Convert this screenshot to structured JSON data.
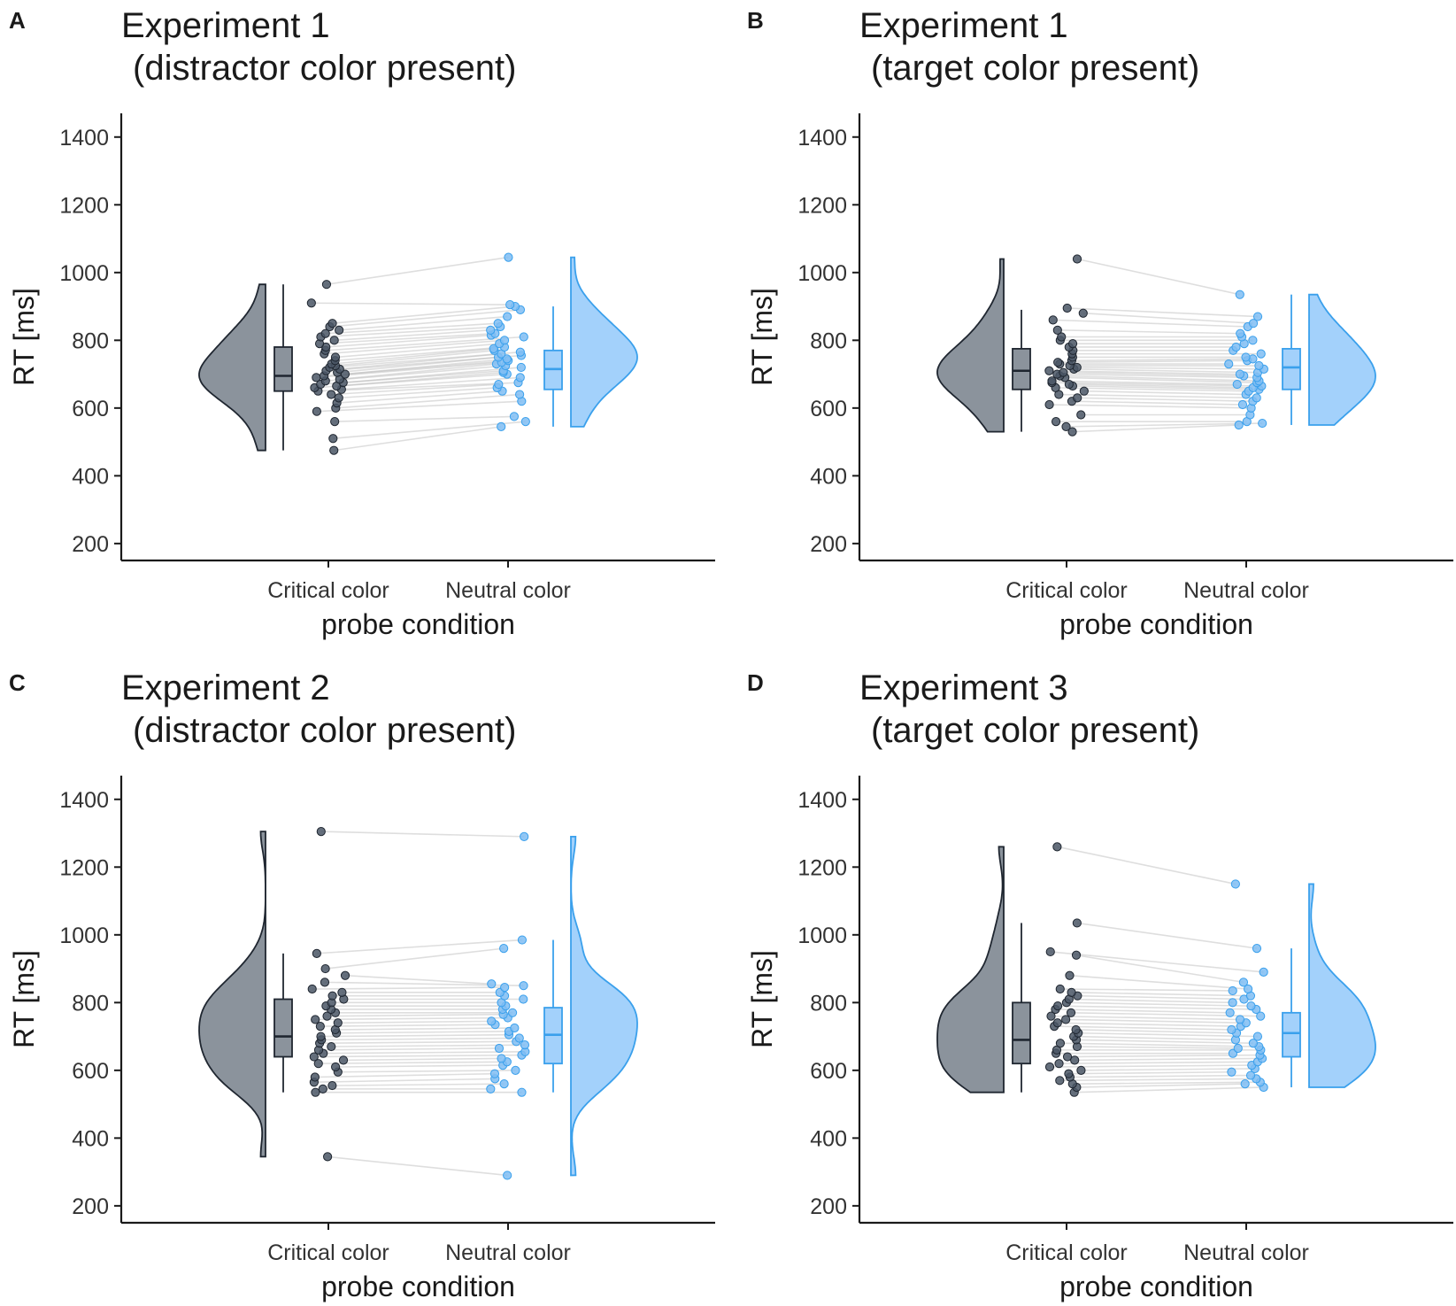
{
  "colors": {
    "critical": "#4a5665",
    "critical_fill": "#8b939c",
    "neutral": "#3aa0ec",
    "neutral_fill": "#a3d1fb"
  },
  "chart_data": [
    {
      "panel": "A",
      "type": "raincloud",
      "title_line1": "Experiment 1",
      "title_line2": "(distractor color present)",
      "xlabel": "probe condition",
      "ylabel": "RT [ms]",
      "categories": [
        "Critical color",
        "Neutral color"
      ],
      "ylim": [
        150,
        1470
      ],
      "yticks": [
        200,
        400,
        600,
        800,
        1000,
        1200,
        1400
      ],
      "box": [
        {
          "min": 475,
          "q1": 650,
          "median": 695,
          "q3": 780,
          "max": 965
        },
        {
          "min": 545,
          "q1": 655,
          "median": 715,
          "q3": 770,
          "max": 900
        }
      ],
      "paired": [
        [
          475,
          545
        ],
        [
          510,
          560
        ],
        [
          560,
          575
        ],
        [
          590,
          620
        ],
        [
          600,
          640
        ],
        [
          615,
          650
        ],
        [
          630,
          660
        ],
        [
          640,
          670
        ],
        [
          650,
          675
        ],
        [
          655,
          690
        ],
        [
          660,
          700
        ],
        [
          665,
          705
        ],
        [
          670,
          710
        ],
        [
          675,
          720
        ],
        [
          680,
          725
        ],
        [
          685,
          730
        ],
        [
          690,
          735
        ],
        [
          695,
          740
        ],
        [
          700,
          745
        ],
        [
          705,
          750
        ],
        [
          710,
          755
        ],
        [
          715,
          760
        ],
        [
          720,
          765
        ],
        [
          725,
          770
        ],
        [
          730,
          775
        ],
        [
          740,
          780
        ],
        [
          750,
          790
        ],
        [
          760,
          800
        ],
        [
          770,
          810
        ],
        [
          780,
          815
        ],
        [
          790,
          820
        ],
        [
          800,
          830
        ],
        [
          810,
          840
        ],
        [
          820,
          850
        ],
        [
          830,
          870
        ],
        [
          840,
          890
        ],
        [
          850,
          900
        ],
        [
          910,
          905
        ],
        [
          965,
          1045
        ]
      ]
    },
    {
      "panel": "B",
      "type": "raincloud",
      "title_line1": "Experiment 1",
      "title_line2": "(target color present)",
      "xlabel": "probe condition",
      "ylabel": "RT [ms]",
      "categories": [
        "Critical color",
        "Neutral color"
      ],
      "ylim": [
        150,
        1470
      ],
      "yticks": [
        200,
        400,
        600,
        800,
        1000,
        1200,
        1400
      ],
      "box": [
        {
          "min": 530,
          "q1": 655,
          "median": 710,
          "q3": 775,
          "max": 890
        },
        {
          "min": 550,
          "q1": 655,
          "median": 720,
          "q3": 775,
          "max": 935
        }
      ],
      "paired": [
        [
          530,
          550
        ],
        [
          545,
          555
        ],
        [
          560,
          560
        ],
        [
          580,
          580
        ],
        [
          610,
          600
        ],
        [
          620,
          610
        ],
        [
          630,
          620
        ],
        [
          640,
          630
        ],
        [
          650,
          640
        ],
        [
          660,
          650
        ],
        [
          665,
          655
        ],
        [
          670,
          660
        ],
        [
          675,
          665
        ],
        [
          680,
          670
        ],
        [
          690,
          675
        ],
        [
          695,
          680
        ],
        [
          700,
          690
        ],
        [
          705,
          695
        ],
        [
          710,
          700
        ],
        [
          715,
          705
        ],
        [
          720,
          715
        ],
        [
          725,
          725
        ],
        [
          730,
          730
        ],
        [
          735,
          740
        ],
        [
          740,
          745
        ],
        [
          750,
          750
        ],
        [
          760,
          760
        ],
        [
          770,
          770
        ],
        [
          780,
          780
        ],
        [
          790,
          790
        ],
        [
          800,
          800
        ],
        [
          810,
          810
        ],
        [
          830,
          820
        ],
        [
          860,
          840
        ],
        [
          880,
          850
        ],
        [
          895,
          870
        ],
        [
          1040,
          935
        ]
      ]
    },
    {
      "panel": "C",
      "type": "raincloud",
      "title_line1": "Experiment 2",
      "title_line2": "(distractor color present)",
      "xlabel": "probe condition",
      "ylabel": "RT [ms]",
      "categories": [
        "Critical color",
        "Neutral color"
      ],
      "ylim": [
        150,
        1470
      ],
      "yticks": [
        200,
        400,
        600,
        800,
        1000,
        1200,
        1400
      ],
      "box": [
        {
          "min": 535,
          "q1": 640,
          "median": 700,
          "q3": 810,
          "max": 945
        },
        {
          "min": 535,
          "q1": 620,
          "median": 705,
          "q3": 785,
          "max": 985
        }
      ],
      "paired": [
        [
          345,
          290
        ],
        [
          535,
          535
        ],
        [
          545,
          545
        ],
        [
          555,
          560
        ],
        [
          565,
          575
        ],
        [
          580,
          590
        ],
        [
          595,
          600
        ],
        [
          610,
          615
        ],
        [
          620,
          625
        ],
        [
          630,
          635
        ],
        [
          640,
          645
        ],
        [
          650,
          655
        ],
        [
          660,
          665
        ],
        [
          670,
          675
        ],
        [
          680,
          685
        ],
        [
          690,
          695
        ],
        [
          700,
          705
        ],
        [
          710,
          715
        ],
        [
          720,
          725
        ],
        [
          730,
          735
        ],
        [
          740,
          745
        ],
        [
          750,
          755
        ],
        [
          760,
          765
        ],
        [
          770,
          770
        ],
        [
          780,
          780
        ],
        [
          790,
          790
        ],
        [
          800,
          800
        ],
        [
          810,
          810
        ],
        [
          820,
          820
        ],
        [
          830,
          830
        ],
        [
          840,
          845
        ],
        [
          860,
          850
        ],
        [
          880,
          855
        ],
        [
          900,
          960
        ],
        [
          945,
          985
        ],
        [
          1305,
          1290
        ]
      ]
    },
    {
      "panel": "D",
      "type": "raincloud",
      "title_line1": "Experiment 3",
      "title_line2": "(target color present)",
      "xlabel": "probe condition",
      "ylabel": "RT [ms]",
      "categories": [
        "Critical color",
        "Neutral color"
      ],
      "ylim": [
        150,
        1470
      ],
      "yticks": [
        200,
        400,
        600,
        800,
        1000,
        1200,
        1400
      ],
      "box": [
        {
          "min": 535,
          "q1": 620,
          "median": 690,
          "q3": 800,
          "max": 1035
        },
        {
          "min": 550,
          "q1": 640,
          "median": 710,
          "q3": 770,
          "max": 960
        }
      ],
      "paired": [
        [
          535,
          550
        ],
        [
          550,
          560
        ],
        [
          560,
          565
        ],
        [
          570,
          575
        ],
        [
          580,
          585
        ],
        [
          590,
          595
        ],
        [
          600,
          605
        ],
        [
          610,
          615
        ],
        [
          620,
          625
        ],
        [
          630,
          635
        ],
        [
          640,
          645
        ],
        [
          650,
          650
        ],
        [
          660,
          660
        ],
        [
          670,
          665
        ],
        [
          680,
          670
        ],
        [
          690,
          680
        ],
        [
          700,
          690
        ],
        [
          710,
          700
        ],
        [
          720,
          710
        ],
        [
          730,
          720
        ],
        [
          740,
          730
        ],
        [
          750,
          740
        ],
        [
          760,
          750
        ],
        [
          770,
          760
        ],
        [
          780,
          770
        ],
        [
          790,
          780
        ],
        [
          800,
          790
        ],
        [
          810,
          800
        ],
        [
          820,
          810
        ],
        [
          830,
          820
        ],
        [
          840,
          835
        ],
        [
          880,
          840
        ],
        [
          940,
          860
        ],
        [
          950,
          890
        ],
        [
          1035,
          960
        ],
        [
          1260,
          1150
        ]
      ]
    }
  ]
}
